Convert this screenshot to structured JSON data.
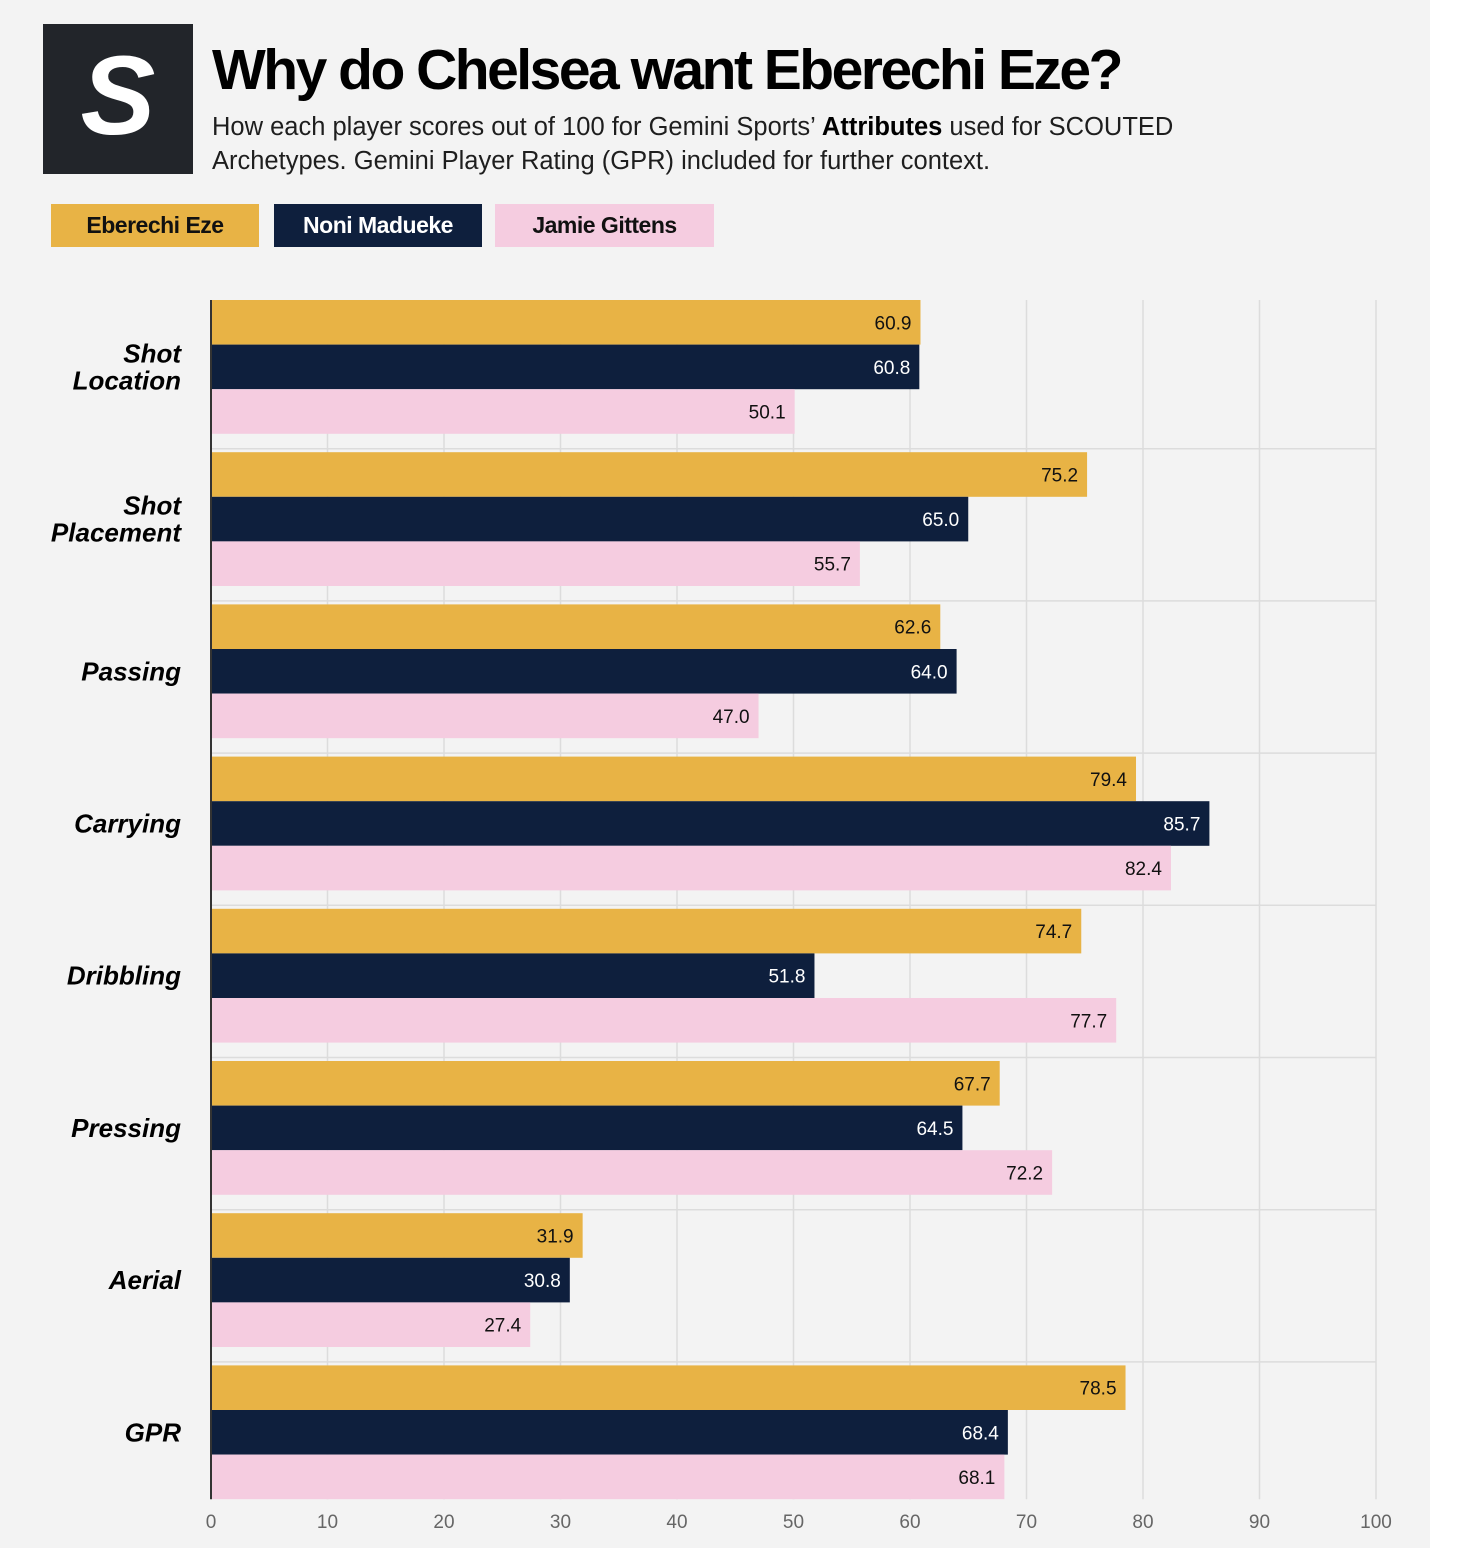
{
  "header": {
    "logo_letter": "S",
    "title": "Why do Chelsea want Eberechi Eze?",
    "subtitle_part1": "How each player scores out of 100 for Gemini Sports’ ",
    "subtitle_bold": "Attributes",
    "subtitle_part2": " used for SCOUTED Archetypes. Gemini Player Rating (GPR) included for further context."
  },
  "legend": {
    "eze": "Eberechi Eze",
    "madueke": "Noni Madueke",
    "gittens": "Jamie Gittens"
  },
  "colors": {
    "eze": "#e8b345",
    "madueke": "#0e1f3d",
    "gittens": "#f5cce0"
  },
  "chart_data": {
    "type": "bar",
    "orientation": "horizontal",
    "title": "Why do Chelsea want Eberechi Eze?",
    "categories": [
      [
        "Shot",
        "Location"
      ],
      [
        "Shot",
        "Placement"
      ],
      [
        "Passing"
      ],
      [
        "Carrying"
      ],
      [
        "Dribbling"
      ],
      [
        "Pressing"
      ],
      [
        "Aerial"
      ],
      [
        "GPR"
      ]
    ],
    "series": [
      {
        "name": "Eberechi Eze",
        "values": [
          60.9,
          75.2,
          62.6,
          79.4,
          74.7,
          67.7,
          31.9,
          78.5
        ]
      },
      {
        "name": "Noni Madueke",
        "values": [
          60.8,
          65.0,
          64.0,
          85.7,
          51.8,
          64.5,
          30.8,
          68.4
        ]
      },
      {
        "name": "Jamie Gittens",
        "values": [
          50.1,
          55.7,
          47.0,
          82.4,
          77.7,
          72.2,
          27.4,
          68.1
        ]
      }
    ],
    "xlim": [
      0,
      100
    ],
    "xticks": [
      0,
      10,
      20,
      30,
      40,
      50,
      60,
      70,
      80,
      90,
      100
    ],
    "grid": true,
    "legend_position": "top-left"
  }
}
